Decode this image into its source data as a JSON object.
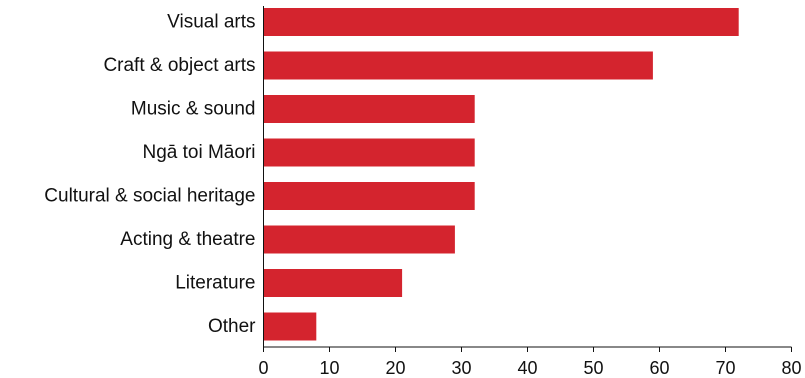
{
  "chart_data": {
    "type": "bar",
    "orientation": "horizontal",
    "categories": [
      "Visual arts",
      "Craft & object arts",
      "Music & sound",
      "Ngā toi Māori",
      "Cultural & social heritage",
      "Acting & theatre",
      "Literature",
      "Other"
    ],
    "values": [
      72,
      59,
      32,
      32,
      32,
      29,
      21,
      8
    ],
    "xlim": [
      0,
      80
    ],
    "xticks": [
      "0",
      "10",
      "20",
      "30",
      "40",
      "50",
      "60",
      "70",
      "80"
    ],
    "title": "",
    "xlabel": "",
    "ylabel": "",
    "grid": false,
    "bar_color": "#d4242e"
  }
}
